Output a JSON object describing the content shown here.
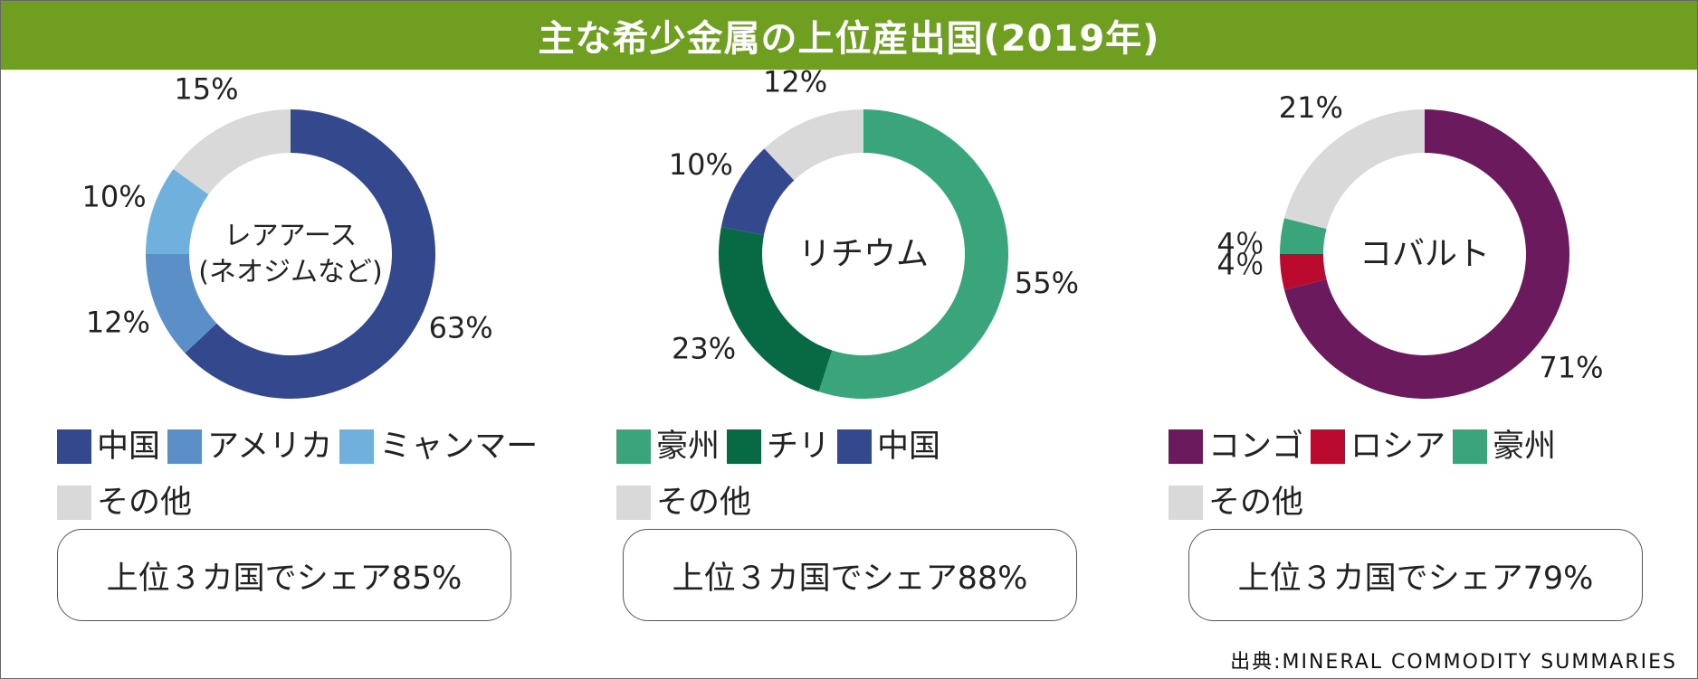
{
  "title": "主な希少金属の上位産出国(2019年)",
  "source": "出典:MINERAL COMMODITY SUMMARIES",
  "colors": {
    "title_bg": "#6f9f21",
    "中国": "#34488e",
    "アメリカ": "#5b8fc8",
    "ミャンマー": "#6fb0dc",
    "その他": "#d9d9d9",
    "豪州": "#3aa57a",
    "チリ": "#086a45",
    "コンゴ": "#6b1a5e",
    "ロシア": "#ba0a2e"
  },
  "chart_data": [
    {
      "type": "pie",
      "subtype": "donut",
      "center_label": [
        "レアアース",
        "(ネオジムなど)"
      ],
      "slices": [
        {
          "name": "中国",
          "value": 63,
          "label": "63%",
          "color": "#34488e"
        },
        {
          "name": "アメリカ",
          "value": 12,
          "label": "12%",
          "color": "#5b8fc8"
        },
        {
          "name": "ミャンマー",
          "value": 10,
          "label": "10%",
          "color": "#6fb0dc"
        },
        {
          "name": "その他",
          "value": 15,
          "label": "15%",
          "color": "#d9d9d9"
        }
      ],
      "legend": [
        {
          "name": "中国",
          "color": "#34488e"
        },
        {
          "name": "アメリカ",
          "color": "#5b8fc8"
        },
        {
          "name": "ミャンマー",
          "color": "#6fb0dc"
        },
        {
          "name": "その他",
          "color": "#d9d9d9"
        }
      ],
      "summary": "上位３カ国でシェア85%"
    },
    {
      "type": "pie",
      "subtype": "donut",
      "center_label": [
        "リチウム"
      ],
      "slices": [
        {
          "name": "豪州",
          "value": 55,
          "label": "55%",
          "color": "#3aa57a"
        },
        {
          "name": "チリ",
          "value": 23,
          "label": "23%",
          "color": "#086a45"
        },
        {
          "name": "中国",
          "value": 10,
          "label": "10%",
          "color": "#34488e"
        },
        {
          "name": "その他",
          "value": 12,
          "label": "12%",
          "color": "#d9d9d9"
        }
      ],
      "legend": [
        {
          "name": "豪州",
          "color": "#3aa57a"
        },
        {
          "name": "チリ",
          "color": "#086a45"
        },
        {
          "name": "中国",
          "color": "#34488e"
        },
        {
          "name": "その他",
          "color": "#d9d9d9"
        }
      ],
      "summary": "上位３カ国でシェア88%"
    },
    {
      "type": "pie",
      "subtype": "donut",
      "center_label": [
        "コバルト"
      ],
      "slices": [
        {
          "name": "コンゴ",
          "value": 71,
          "label": "71%",
          "color": "#6b1a5e"
        },
        {
          "name": "ロシア",
          "value": 4,
          "label": "4％",
          "color": "#ba0a2e"
        },
        {
          "name": "豪州",
          "value": 4,
          "label": "4％",
          "color": "#3aa57a"
        },
        {
          "name": "その他",
          "value": 21,
          "label": "21%",
          "color": "#d9d9d9"
        }
      ],
      "legend": [
        {
          "name": "コンゴ",
          "color": "#6b1a5e"
        },
        {
          "name": "ロシア",
          "color": "#ba0a2e"
        },
        {
          "name": "豪州",
          "color": "#3aa57a"
        },
        {
          "name": "その他",
          "color": "#d9d9d9"
        }
      ],
      "summary": "上位３カ国でシェア79%"
    }
  ]
}
